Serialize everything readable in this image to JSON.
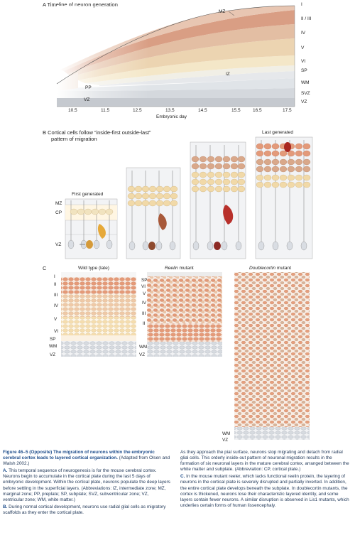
{
  "panelA": {
    "title": "A  Timeline of neuron generation",
    "layers": [
      "I",
      "II / III",
      "IV",
      "V",
      "VI",
      "SP",
      "WM",
      "SVZ",
      "VZ"
    ],
    "inner_labels": {
      "mz": "MZ",
      "iz": "IZ",
      "pp": "PP",
      "vz": "VZ"
    },
    "days": [
      "10.5",
      "11.5",
      "12.5",
      "13.5",
      "14.5",
      "15.5",
      "16.5",
      "17.5"
    ],
    "xlabel": "Embryonic day"
  },
  "panelB": {
    "title_line1": "B  Cortical cells follow “inside-first outside-last”",
    "title_line2": "pattern of migration",
    "first_label": "First generated",
    "last_label": "Last generated",
    "zone_labels": {
      "mz": "MZ",
      "cp": "CP",
      "vz": "VZ"
    }
  },
  "panelC": {
    "label": "C",
    "wt_title": "Wild type (late)",
    "reelin_title_italic": "Reelin",
    "reelin_title_rest": " mutant",
    "dcx_title_italic": "Doublecortin",
    "dcx_title_rest": " mutant",
    "wt_layers": [
      "I",
      "II",
      "III",
      "IV",
      "V",
      "VI",
      "SP",
      "WM",
      "VZ"
    ],
    "reelin_layers": [
      "SP",
      "VI",
      "V",
      "IV",
      "III",
      "II",
      "WM",
      "VZ"
    ],
    "dcx_layers": [
      "WM",
      "VZ"
    ]
  },
  "caption": {
    "title": "Figure 46–5  (Opposite) The migration of neurons within the embryonic cerebral cortex leads to layered cortical organization.",
    "source": " (Adapted from Olsen and Walsh 2002.)",
    "a_label": "A.",
    "a_text": " This temporal sequence of neurogenesis is for the mouse cerebral cortex. Neurons begin to accumulate in the cortical plate during the last 5 days of embryonic development. Within the cortical plate, neurons populate the deep layers before settling in the superficial layers. (Abbreviations: IZ, intermediate zone; MZ, marginal zone; PP, preplate; SP, subplate; SVZ, subventricular zone; VZ, ventricular zone; WM, white matter.)",
    "b_label": "B.",
    "b_text": " During normal cortical development, neurons use radial glial cells as migratory scaffolds as they enter the cortical plate.",
    "right_text": "As they approach the pial surface, neurons stop migrating and detach from radial glial cells. This orderly inside-out pattern of neuronal migration results in the formation of six neuronal layers in the mature cerebral cortex, arranged between the white matter and subplate. (Abbreviation: CP, cortical plate.)",
    "c_label": "C.",
    "c_text": " In the mouse mutant reeler, which lacks functional reelin protein, the layering of neurons in the cortical plate is severely disrupted and partially inverted. In addition, the entire cortical plate develops beneath the subplate. In doublecortin mutants, the cortex is thickened, neurons lose their characteristic layered identity, and some layers contain fewer neurons. A similar disruption is observed in Lis1 mutants, which underlies certain forms of human lissencephaly."
  }
}
